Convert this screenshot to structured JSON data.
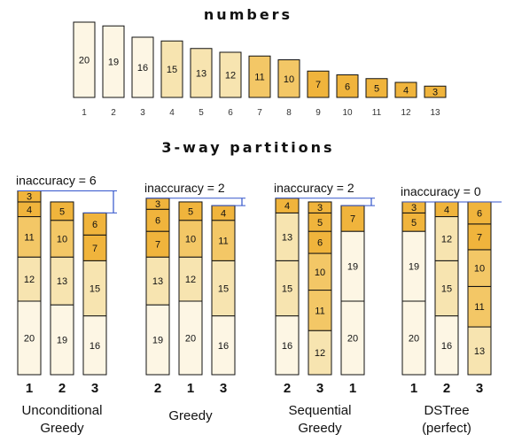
{
  "title_numbers": "numbers",
  "title_partitions": "3-way partitions",
  "colors": {
    "c1": "#fdf6e4",
    "c2": "#f7e4b0",
    "c3": "#f3c766",
    "c4": "#f0b43c",
    "bar_border": "#111111",
    "bracket": "#3355cc"
  },
  "numbers": [
    {
      "value": 20,
      "index": "1"
    },
    {
      "value": 19,
      "index": "2"
    },
    {
      "value": 16,
      "index": "3"
    },
    {
      "value": 15,
      "index": "4"
    },
    {
      "value": 13,
      "index": "5"
    },
    {
      "value": 12,
      "index": "6"
    },
    {
      "value": 11,
      "index": "7"
    },
    {
      "value": 10,
      "index": "8"
    },
    {
      "value": 7,
      "index": "9"
    },
    {
      "value": 6,
      "index": "10"
    },
    {
      "value": 5,
      "index": "11"
    },
    {
      "value": 4,
      "index": "12"
    },
    {
      "value": 3,
      "index": "13"
    }
  ],
  "methods": [
    {
      "name": [
        "Unconditional",
        "Greedy"
      ],
      "inaccuracy": "inaccuracy = 6",
      "columns": [
        {
          "label": "1",
          "segments": [
            20,
            12,
            11,
            4,
            3
          ]
        },
        {
          "label": "2",
          "segments": [
            19,
            13,
            10,
            5
          ]
        },
        {
          "label": "3",
          "segments": [
            16,
            15,
            7,
            6
          ]
        }
      ]
    },
    {
      "name": [
        "Greedy"
      ],
      "inaccuracy": "inaccuracy = 2",
      "columns": [
        {
          "label": "2",
          "segments": [
            19,
            13,
            7,
            6,
            3
          ]
        },
        {
          "label": "1",
          "segments": [
            20,
            12,
            10,
            5
          ]
        },
        {
          "label": "3",
          "segments": [
            16,
            15,
            11,
            4
          ]
        }
      ]
    },
    {
      "name": [
        "Sequential",
        "Greedy"
      ],
      "inaccuracy": "inaccuracy = 2",
      "columns": [
        {
          "label": "2",
          "segments": [
            16,
            15,
            13,
            4
          ]
        },
        {
          "label": "3",
          "segments": [
            12,
            11,
            10,
            6,
            5,
            3
          ]
        },
        {
          "label": "1",
          "segments": [
            20,
            19,
            7
          ]
        }
      ]
    },
    {
      "name": [
        "DSTree",
        "(perfect)"
      ],
      "inaccuracy": "inaccuracy = 0",
      "columns": [
        {
          "label": "1",
          "segments": [
            20,
            19,
            5,
            3
          ]
        },
        {
          "label": "2",
          "segments": [
            16,
            15,
            12,
            4
          ]
        },
        {
          "label": "3",
          "segments": [
            13,
            11,
            10,
            7,
            6
          ]
        }
      ]
    }
  ]
}
